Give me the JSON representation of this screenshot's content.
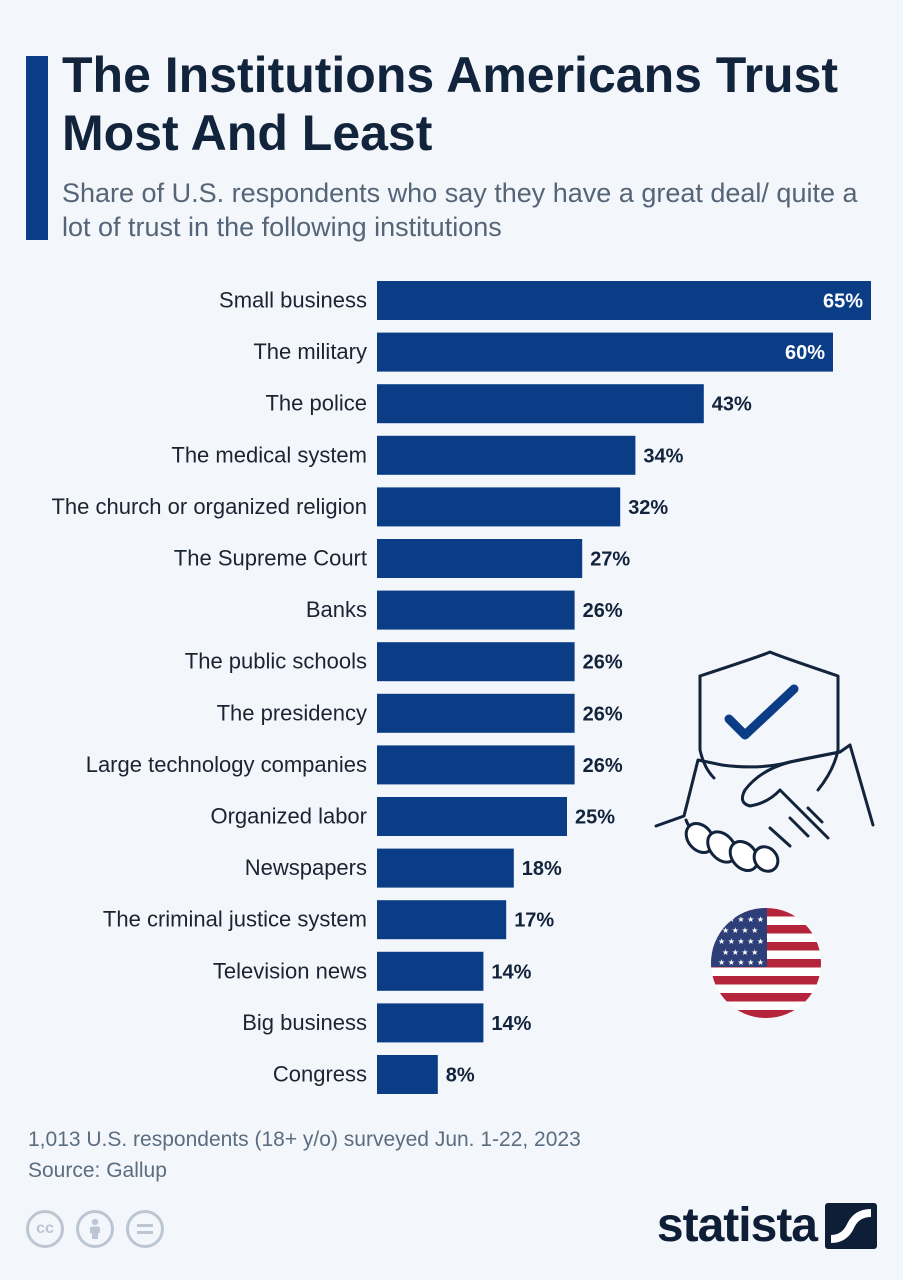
{
  "header": {
    "title": "The Institutions Americans Trust Most And Least",
    "subtitle": "Share of U.S. respondents who say they have a great deal/ quite a lot of trust in the following institutions"
  },
  "colors": {
    "bar": "#0b3d86",
    "value_inside": "#ffffff",
    "value_outside": "#12233c"
  },
  "chart_data": {
    "type": "bar",
    "orientation": "horizontal",
    "title": "The Institutions Americans Trust Most And Least",
    "xlabel": "",
    "ylabel": "",
    "xlim": [
      0,
      65
    ],
    "unit": "%",
    "categories": [
      "Small business",
      "The military",
      "The police",
      "The medical system",
      "The church or organized religion",
      "The Supreme Court",
      "Banks",
      "The public schools",
      "The presidency",
      "Large technology companies",
      "Organized labor",
      "Newspapers",
      "The criminal justice system",
      "Television news",
      "Big business",
      "Congress"
    ],
    "values": [
      65,
      60,
      43,
      34,
      32,
      27,
      26,
      26,
      26,
      26,
      25,
      18,
      17,
      14,
      14,
      8
    ],
    "value_labels": [
      "65%",
      "60%",
      "43%",
      "34%",
      "32%",
      "27%",
      "26%",
      "26%",
      "26%",
      "26%",
      "25%",
      "18%",
      "17%",
      "14%",
      "14%",
      "8%"
    ]
  },
  "footer": {
    "note": "1,013 U.S. respondents (18+ y/o) surveyed Jun. 1-22, 2023",
    "source": "Source: Gallup",
    "brand": "statista"
  },
  "icons": {
    "handshake": "handshake-shield-icon",
    "flag": "us-flag-icon",
    "cc": "cc-icon",
    "by": "attribution-icon",
    "nd": "no-derivatives-icon"
  }
}
